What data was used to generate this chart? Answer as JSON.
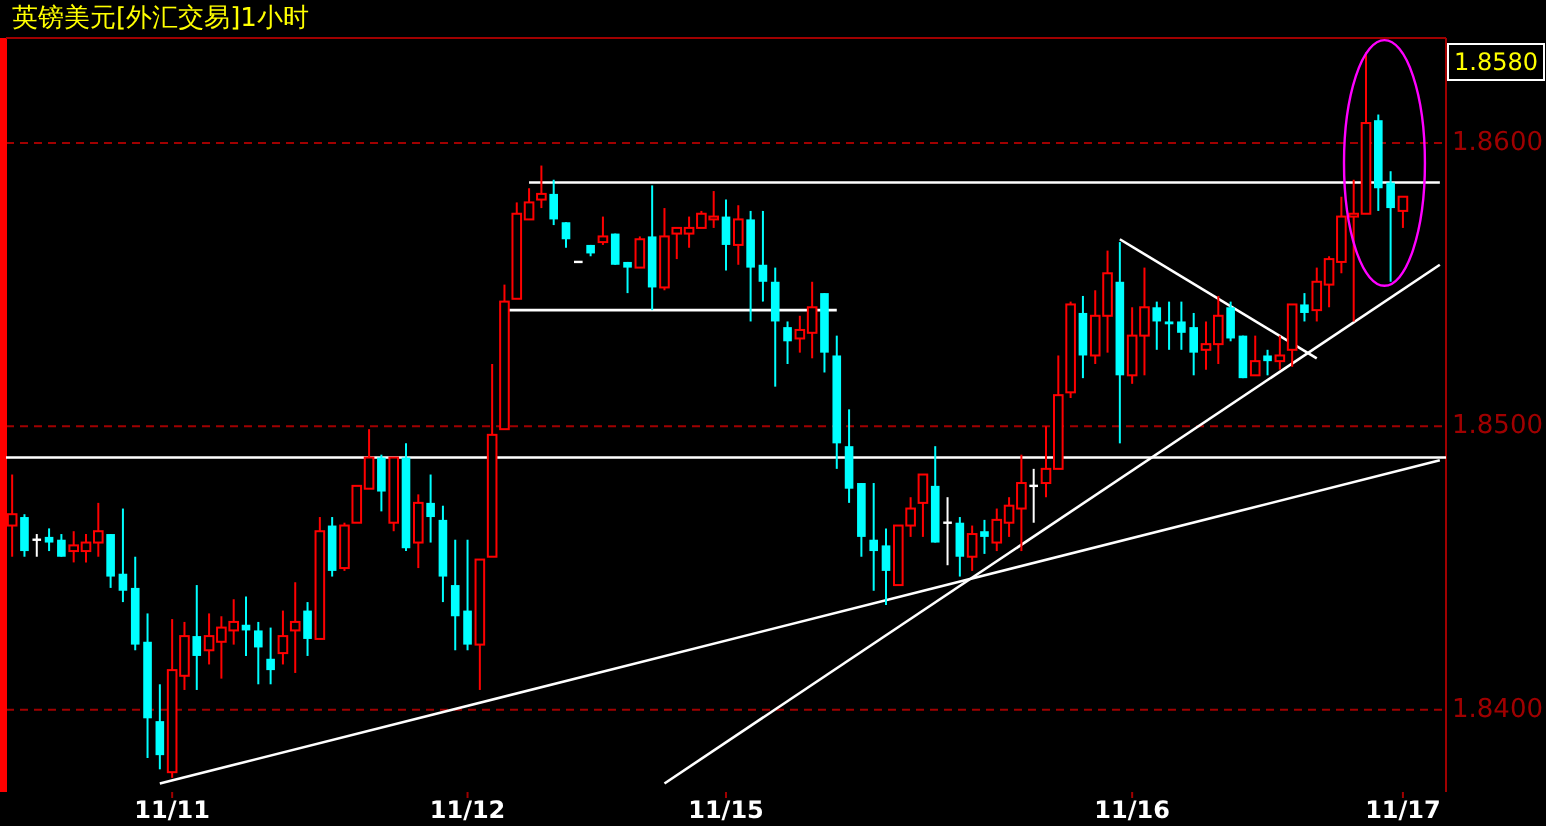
{
  "chart_data": {
    "type": "candlestick",
    "title": "英镑美元[外汇交易]1小时",
    "categories": [
      null,
      null,
      null,
      null,
      null,
      null,
      null,
      null,
      null,
      null,
      null,
      null,
      null,
      "11/11",
      null,
      null,
      null,
      null,
      null,
      null,
      null,
      null,
      null,
      null,
      null,
      null,
      null,
      null,
      null,
      null,
      null,
      null,
      null,
      null,
      null,
      null,
      null,
      "11/12",
      null,
      null,
      null,
      null,
      null,
      null,
      null,
      null,
      null,
      null,
      null,
      null,
      null,
      null,
      null,
      null,
      null,
      null,
      null,
      null,
      "11/15",
      null,
      null,
      null,
      null,
      null,
      null,
      null,
      null,
      null,
      null,
      null,
      null,
      null,
      null,
      null,
      null,
      null,
      null,
      null,
      null,
      null,
      null,
      null,
      null,
      null,
      null,
      null,
      null,
      null,
      null,
      null,
      null,
      "11/16",
      null,
      null,
      null,
      null,
      null,
      null,
      null,
      null,
      null,
      null,
      null,
      null,
      null,
      null,
      null,
      null,
      null,
      null,
      null,
      null,
      null,
      "11/17",
      null,
      null,
      null
    ],
    "ohlc": [
      [
        1.8465,
        1.8483,
        1.8454,
        1.8469
      ],
      [
        1.8468,
        1.8469,
        1.8454,
        1.8456
      ],
      [
        1.846,
        1.8462,
        1.8454,
        1.846
      ],
      [
        1.8461,
        1.8464,
        1.8456,
        1.8459
      ],
      [
        1.846,
        1.8462,
        1.8454,
        1.8454
      ],
      [
        1.8456,
        1.8463,
        1.8452,
        1.8458
      ],
      [
        1.8456,
        1.8462,
        1.8452,
        1.8459
      ],
      [
        1.8459,
        1.8473,
        1.8454,
        1.8463
      ],
      [
        1.8462,
        1.8462,
        1.8443,
        1.8447
      ],
      [
        1.8448,
        1.8471,
        1.8438,
        1.8442
      ],
      [
        1.8443,
        1.8454,
        1.8421,
        1.8423
      ],
      [
        1.8424,
        1.8434,
        1.8383,
        1.8397
      ],
      [
        1.8396,
        1.8409,
        1.8379,
        1.8384
      ],
      [
        1.8378,
        1.8432,
        1.8376,
        1.8414
      ],
      [
        1.8412,
        1.8431,
        1.8407,
        1.8426
      ],
      [
        1.8426,
        1.8444,
        1.8407,
        1.8419
      ],
      [
        1.8421,
        1.8434,
        1.8416,
        1.8426
      ],
      [
        1.8424,
        1.8433,
        1.8411,
        1.8429
      ],
      [
        1.8428,
        1.8439,
        1.8423,
        1.8431
      ],
      [
        1.843,
        1.844,
        1.8419,
        1.8428
      ],
      [
        1.8428,
        1.8431,
        1.8409,
        1.8422
      ],
      [
        1.8418,
        1.8429,
        1.8409,
        1.8414
      ],
      [
        1.842,
        1.8435,
        1.8416,
        1.8426
      ],
      [
        1.8428,
        1.8445,
        1.8413,
        1.8431
      ],
      [
        1.8435,
        1.8438,
        1.8419,
        1.8425
      ],
      [
        1.8425,
        1.8468,
        1.8425,
        1.8463
      ],
      [
        1.8465,
        1.8468,
        1.8447,
        1.8449
      ],
      [
        1.845,
        1.8466,
        1.8449,
        1.8465
      ],
      [
        1.8466,
        1.8479,
        1.8466,
        1.8479
      ],
      [
        1.8478,
        1.8499,
        1.8478,
        1.8489
      ],
      [
        1.8489,
        1.849,
        1.847,
        1.8477
      ],
      [
        1.8466,
        1.8489,
        1.8463,
        1.8489
      ],
      [
        1.8489,
        1.8494,
        1.8456,
        1.8457
      ],
      [
        1.8459,
        1.8476,
        1.845,
        1.8473
      ],
      [
        1.8473,
        1.8483,
        1.8459,
        1.8468
      ],
      [
        1.8467,
        1.8472,
        1.8438,
        1.8447
      ],
      [
        1.8444,
        1.846,
        1.8421,
        1.8433
      ],
      [
        1.8435,
        1.846,
        1.8421,
        1.8423
      ],
      [
        1.8423,
        1.8453,
        1.8407,
        1.8453
      ],
      [
        1.8454,
        1.8522,
        1.8454,
        1.8497
      ],
      [
        1.8499,
        1.855,
        1.8499,
        1.8544
      ],
      [
        1.8545,
        1.8579,
        1.8545,
        1.8575
      ],
      [
        1.8573,
        1.8584,
        1.8573,
        1.8579
      ],
      [
        1.858,
        1.8592,
        1.8577,
        1.8582
      ],
      [
        1.8582,
        1.8587,
        1.8571,
        1.8573
      ],
      [
        1.8572,
        1.8572,
        1.8563,
        1.8566
      ],
      [
        1.8558,
        1.8558,
        1.8558,
        1.8558
      ],
      [
        1.8564,
        1.8564,
        1.856,
        1.8561
      ],
      [
        1.8565,
        1.8574,
        1.8564,
        1.8567
      ],
      [
        1.8568,
        1.8568,
        1.8557,
        1.8557
      ],
      [
        1.8558,
        1.8558,
        1.8547,
        1.8556
      ],
      [
        1.8556,
        1.8567,
        1.8556,
        1.8566
      ],
      [
        1.8567,
        1.8585,
        1.8541,
        1.8549
      ],
      [
        1.8549,
        1.8577,
        1.8548,
        1.8567
      ],
      [
        1.8568,
        1.857,
        1.8559,
        1.857
      ],
      [
        1.8568,
        1.8574,
        1.8563,
        1.857
      ],
      [
        1.857,
        1.8576,
        1.857,
        1.8575
      ],
      [
        1.8573,
        1.8583,
        1.857,
        1.8574
      ],
      [
        1.8574,
        1.858,
        1.8555,
        1.8564
      ],
      [
        1.8564,
        1.8578,
        1.8557,
        1.8573
      ],
      [
        1.8573,
        1.8576,
        1.8537,
        1.8556
      ],
      [
        1.8557,
        1.8576,
        1.8544,
        1.8551
      ],
      [
        1.8551,
        1.8556,
        1.8514,
        1.8537
      ],
      [
        1.8535,
        1.8537,
        1.8522,
        1.853
      ],
      [
        1.8531,
        1.8539,
        1.8526,
        1.8534
      ],
      [
        1.8533,
        1.8551,
        1.8524,
        1.8542
      ],
      [
        1.8547,
        1.8547,
        1.8519,
        1.8526
      ],
      [
        1.8525,
        1.8532,
        1.8485,
        1.8494
      ],
      [
        1.8493,
        1.8506,
        1.8473,
        1.8478
      ],
      [
        1.848,
        1.848,
        1.8454,
        1.8461
      ],
      [
        1.846,
        1.848,
        1.8442,
        1.8456
      ],
      [
        1.8458,
        1.8464,
        1.8437,
        1.8449
      ],
      [
        1.8444,
        1.8465,
        1.8444,
        1.8465
      ],
      [
        1.8465,
        1.8475,
        1.8461,
        1.8471
      ],
      [
        1.8473,
        1.8483,
        1.8461,
        1.8483
      ],
      [
        1.8479,
        1.8493,
        1.8459,
        1.8459
      ],
      [
        1.8466,
        1.8475,
        1.8451,
        1.8466
      ],
      [
        1.8466,
        1.8468,
        1.8447,
        1.8454
      ],
      [
        1.8454,
        1.8465,
        1.8449,
        1.8462
      ],
      [
        1.8463,
        1.8467,
        1.8455,
        1.8461
      ],
      [
        1.8459,
        1.8471,
        1.8456,
        1.8467
      ],
      [
        1.8466,
        1.8475,
        1.8461,
        1.8472
      ],
      [
        1.8471,
        1.849,
        1.8456,
        1.848
      ],
      [
        1.8479,
        1.8485,
        1.8466,
        1.8479
      ],
      [
        1.848,
        1.85,
        1.8475,
        1.8485
      ],
      [
        1.8485,
        1.8525,
        1.8485,
        1.8511
      ],
      [
        1.8512,
        1.8544,
        1.851,
        1.8543
      ],
      [
        1.854,
        1.8546,
        1.8517,
        1.8525
      ],
      [
        1.8525,
        1.8548,
        1.8522,
        1.8539
      ],
      [
        1.8539,
        1.8562,
        1.8526,
        1.8554
      ],
      [
        1.8551,
        1.8565,
        1.8494,
        1.8518
      ],
      [
        1.8518,
        1.8542,
        1.8515,
        1.8532
      ],
      [
        1.8532,
        1.8556,
        1.8518,
        1.8542
      ],
      [
        1.8542,
        1.8544,
        1.8527,
        1.8537
      ],
      [
        1.8537,
        1.8544,
        1.8527,
        1.8536
      ],
      [
        1.8537,
        1.8544,
        1.8527,
        1.8533
      ],
      [
        1.8535,
        1.854,
        1.8518,
        1.8526
      ],
      [
        1.8527,
        1.8537,
        1.852,
        1.8529
      ],
      [
        1.8529,
        1.8546,
        1.8522,
        1.8539
      ],
      [
        1.8542,
        1.8544,
        1.853,
        1.8531
      ],
      [
        1.8532,
        1.8532,
        1.8517,
        1.8517
      ],
      [
        1.8518,
        1.8532,
        1.8518,
        1.8523
      ],
      [
        1.8525,
        1.8527,
        1.8518,
        1.8523
      ],
      [
        1.8523,
        1.8532,
        1.852,
        1.8525
      ],
      [
        1.8527,
        1.8543,
        1.8521,
        1.8543
      ],
      [
        1.8543,
        1.8547,
        1.8537,
        1.854
      ],
      [
        1.8541,
        1.8556,
        1.8537,
        1.8551
      ],
      [
        1.855,
        1.856,
        1.8542,
        1.8559
      ],
      [
        1.8558,
        1.8581,
        1.8554,
        1.8574
      ],
      [
        1.8574,
        1.8587,
        1.8537,
        1.8575
      ],
      [
        1.8575,
        1.8632,
        1.8575,
        1.8607
      ],
      [
        1.8608,
        1.861,
        1.8576,
        1.8584
      ],
      [
        1.8586,
        1.859,
        1.8551,
        1.8577
      ],
      [
        1.8576,
        1.8581,
        1.857,
        1.8581
      ],
      null,
      null,
      null
    ],
    "colors": [
      "#ff0000",
      "#00ffff",
      "#ffffff",
      "#00ffff",
      "#00ffff",
      "#ff0000",
      "#ff0000",
      "#ff0000",
      "#00ffff",
      "#00ffff",
      "#00ffff",
      "#00ffff",
      "#00ffff",
      "#ff0000",
      "#ff0000",
      "#00ffff",
      "#ff0000",
      "#ff0000",
      "#ff0000",
      "#00ffff",
      "#00ffff",
      "#00ffff",
      "#ff0000",
      "#ff0000",
      "#00ffff",
      "#ff0000",
      "#00ffff",
      "#ff0000",
      "#ff0000",
      "#ff0000",
      "#00ffff",
      "#ff0000",
      "#00ffff",
      "#ff0000",
      "#00ffff",
      "#00ffff",
      "#00ffff",
      "#00ffff",
      "#ff0000",
      "#ff0000",
      "#ff0000",
      "#ff0000",
      "#ff0000",
      "#ff0000",
      "#00ffff",
      "#00ffff",
      "#ffffff",
      "#00ffff",
      "#ff0000",
      "#00ffff",
      "#00ffff",
      "#ff0000",
      "#00ffff",
      "#ff0000",
      "#ff0000",
      "#ff0000",
      "#ff0000",
      "#ff0000",
      "#00ffff",
      "#ff0000",
      "#00ffff",
      "#00ffff",
      "#00ffff",
      "#00ffff",
      "#ff0000",
      "#ff0000",
      "#00ffff",
      "#00ffff",
      "#00ffff",
      "#00ffff",
      "#00ffff",
      "#00ffff",
      "#ff0000",
      "#ff0000",
      "#ff0000",
      "#00ffff",
      "#ffffff",
      "#00ffff",
      "#ff0000",
      "#00ffff",
      "#ff0000",
      "#ff0000",
      "#ff0000",
      "#ffffff",
      "#ff0000",
      "#ff0000",
      "#ff0000",
      "#00ffff",
      "#ff0000",
      "#ff0000",
      "#00ffff",
      "#ff0000",
      "#ff0000",
      "#00ffff",
      "#00ffff",
      "#00ffff",
      "#00ffff",
      "#ff0000",
      "#ff0000",
      "#00ffff",
      "#00ffff",
      "#ff0000",
      "#00ffff",
      "#ff0000",
      "#ff0000",
      "#00ffff",
      "#ff0000",
      "#ff0000",
      "#ff0000",
      "#ff0000",
      "#ff0000",
      "#00ffff",
      "#00ffff",
      "#ff0000",
      null,
      null,
      null
    ],
    "series": [
      {
        "type": "line",
        "color": "#ffffff",
        "values": [
          null,
          null,
          null,
          null,
          null,
          null,
          null,
          null,
          null,
          null,
          null,
          null,
          null,
          null,
          null,
          null,
          null,
          null,
          null,
          null,
          null,
          null,
          null,
          null,
          null,
          null,
          null,
          null,
          null,
          null,
          null,
          null,
          null,
          null,
          null,
          null,
          null,
          null,
          null,
          null,
          null,
          null,
          1.8586,
          null,
          null,
          null,
          null,
          null,
          null,
          null,
          null,
          null,
          null,
          null,
          null,
          null,
          null,
          null,
          null,
          null,
          null,
          null,
          null,
          null,
          null,
          null,
          null,
          null,
          null,
          null,
          null,
          null,
          null,
          null,
          null,
          null,
          null,
          null,
          null,
          null,
          null,
          null,
          null,
          null,
          null,
          null,
          null,
          null,
          null,
          null,
          null,
          null,
          null,
          null,
          null,
          null,
          null,
          null,
          null,
          null,
          null,
          null,
          null,
          null,
          null,
          null,
          null,
          null,
          null,
          null,
          null,
          null,
          null,
          null,
          null,
          null,
          1.8586
        ]
      },
      {
        "type": "line",
        "color": "#ffffff",
        "values": [
          null,
          null,
          null,
          null,
          null,
          null,
          null,
          null,
          null,
          null,
          null,
          null,
          null,
          null,
          null,
          null,
          null,
          null,
          null,
          null,
          null,
          null,
          null,
          null,
          null,
          null,
          null,
          null,
          null,
          null,
          null,
          null,
          null,
          null,
          null,
          null,
          null,
          null,
          null,
          null,
          1.8541,
          null,
          null,
          null,
          null,
          null,
          null,
          null,
          null,
          null,
          null,
          null,
          null,
          null,
          null,
          null,
          null,
          null,
          null,
          null,
          null,
          null,
          null,
          null,
          null,
          null,
          null,
          1.8541,
          null,
          null,
          null,
          null,
          null,
          null,
          null,
          null,
          null,
          null,
          null,
          null,
          null,
          null,
          null,
          null,
          null,
          null,
          null,
          null,
          null,
          null,
          null,
          null,
          null,
          null,
          null,
          null,
          null,
          null,
          null,
          null,
          null,
          null,
          null,
          null,
          null,
          null,
          null,
          null,
          null,
          null,
          null,
          null,
          null,
          null,
          null,
          null,
          null
        ]
      },
      {
        "type": "line",
        "color": "#ffffff",
        "values": [
          null,
          null,
          null,
          null,
          null,
          null,
          null,
          null,
          null,
          null,
          null,
          null,
          1.8374,
          null,
          null,
          null,
          null,
          null,
          null,
          null,
          null,
          null,
          null,
          null,
          null,
          null,
          null,
          null,
          null,
          null,
          null,
          null,
          null,
          null,
          null,
          null,
          null,
          null,
          null,
          null,
          null,
          null,
          null,
          null,
          null,
          null,
          null,
          null,
          null,
          null,
          null,
          null,
          null,
          null,
          null,
          null,
          null,
          null,
          null,
          null,
          null,
          null,
          null,
          null,
          null,
          null,
          null,
          null,
          null,
          null,
          null,
          null,
          null,
          null,
          null,
          null,
          null,
          null,
          null,
          null,
          null,
          null,
          null,
          null,
          null,
          null,
          null,
          null,
          null,
          null,
          null,
          null,
          null,
          null,
          null,
          null,
          null,
          null,
          null,
          null,
          null,
          null,
          null,
          null,
          null,
          null,
          null,
          null,
          null,
          null,
          null,
          null,
          null,
          null,
          null,
          null,
          1.8488
        ]
      },
      {
        "type": "line",
        "color": "#ffffff",
        "values": [
          null,
          null,
          null,
          null,
          null,
          null,
          null,
          null,
          null,
          null,
          null,
          null,
          null,
          null,
          null,
          null,
          null,
          null,
          null,
          null,
          null,
          null,
          null,
          null,
          null,
          null,
          null,
          null,
          null,
          null,
          null,
          null,
          null,
          null,
          null,
          null,
          null,
          null,
          null,
          null,
          null,
          null,
          null,
          null,
          null,
          null,
          null,
          null,
          null,
          null,
          null,
          null,
          null,
          1.8374,
          null,
          null,
          null,
          null,
          null,
          null,
          null,
          null,
          null,
          null,
          null,
          null,
          null,
          null,
          null,
          null,
          null,
          null,
          null,
          null,
          null,
          null,
          null,
          null,
          null,
          null,
          null,
          null,
          null,
          null,
          null,
          null,
          null,
          null,
          null,
          null,
          null,
          null,
          null,
          null,
          null,
          null,
          null,
          null,
          null,
          null,
          null,
          null,
          null,
          null,
          null,
          null,
          null,
          null,
          null,
          null,
          null,
          null,
          null,
          null,
          null,
          null,
          1.8557
        ]
      },
      {
        "type": "line",
        "color": "#ffffff",
        "values": [
          null,
          null,
          null,
          null,
          null,
          null,
          null,
          null,
          null,
          null,
          null,
          null,
          null,
          null,
          null,
          null,
          null,
          null,
          null,
          null,
          null,
          null,
          null,
          null,
          null,
          null,
          null,
          null,
          null,
          null,
          null,
          null,
          null,
          null,
          null,
          null,
          null,
          null,
          null,
          null,
          null,
          null,
          null,
          null,
          null,
          null,
          null,
          null,
          null,
          null,
          null,
          null,
          null,
          null,
          null,
          null,
          null,
          null,
          null,
          null,
          null,
          null,
          null,
          null,
          null,
          null,
          null,
          null,
          null,
          null,
          null,
          null,
          null,
          null,
          null,
          null,
          null,
          null,
          null,
          null,
          null,
          null,
          null,
          null,
          null,
          null,
          null,
          null,
          null,
          null,
          1.8566,
          null,
          null,
          null,
          null,
          null,
          null,
          null,
          null,
          null,
          null,
          null,
          null,
          null,
          null,
          null,
          1.8524,
          null,
          null,
          null,
          null,
          null,
          null,
          null,
          null,
          null,
          null
        ]
      }
    ],
    "ref_lines": [
      {
        "axis": "y",
        "value": 1.8489,
        "color": "#ffffff"
      }
    ],
    "ylim": [
      1.8371,
      1.8637
    ],
    "yticks": [
      {
        "value": 1.84,
        "label": "1.8400"
      },
      {
        "value": 1.85,
        "label": "1.8500"
      },
      {
        "value": 1.86,
        "label": "1.8600"
      }
    ],
    "grid": "y",
    "annotations": [
      "1.8580"
    ]
  }
}
